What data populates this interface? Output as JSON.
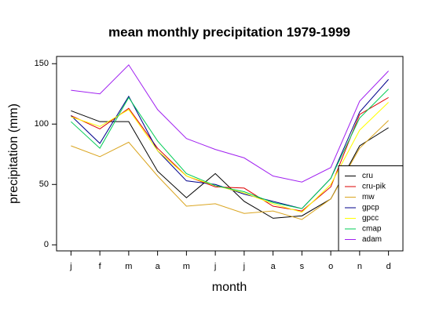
{
  "chart_data": {
    "type": "line",
    "title": "mean monthly precipitation 1979-1999",
    "x_label": "month",
    "y_label": "precipitation (mm)",
    "categories": [
      "j",
      "f",
      "m",
      "a",
      "m",
      "j",
      "j",
      "a",
      "s",
      "o",
      "n",
      "d"
    ],
    "series": [
      {
        "name": "cru",
        "color": "#000000",
        "values": [
          111,
          102,
          102,
          61,
          39,
          59,
          36,
          22,
          24,
          38,
          82,
          97
        ]
      },
      {
        "name": "cru-pik",
        "color": "#dd0000",
        "values": [
          107,
          96,
          113,
          80,
          57,
          48,
          47,
          32,
          28,
          48,
          108,
          122
        ]
      },
      {
        "name": "mw",
        "color": "#daa520",
        "values": [
          82,
          73,
          85,
          57,
          32,
          34,
          26,
          28,
          21,
          38,
          80,
          103
        ]
      },
      {
        "name": "gpcp",
        "color": "#00008b",
        "values": [
          107,
          84,
          123,
          78,
          53,
          50,
          42,
          36,
          30,
          55,
          110,
          137
        ]
      },
      {
        "name": "gpcc",
        "color": "#ffff00",
        "values": [
          106,
          98,
          112,
          78,
          57,
          49,
          43,
          34,
          27,
          50,
          95,
          118
        ]
      },
      {
        "name": "cmap",
        "color": "#00cc55",
        "values": [
          102,
          80,
          122,
          86,
          59,
          49,
          44,
          35,
          30,
          55,
          105,
          129
        ]
      },
      {
        "name": "adam",
        "color": "#a020f0",
        "values": [
          128,
          125,
          149,
          112,
          88,
          79,
          72,
          57,
          52,
          64,
          119,
          144
        ]
      }
    ],
    "ylim": [
      -5,
      156
    ],
    "yticks": [
      0,
      50,
      100,
      150
    ],
    "legend": "bottom-right"
  }
}
